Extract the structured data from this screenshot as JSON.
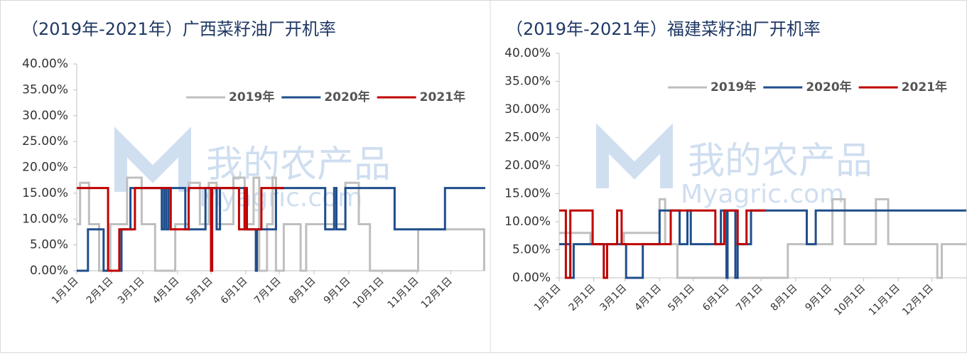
{
  "chart_data": [
    {
      "type": "line",
      "title": "（2019年-2021年）广西菜籽油厂开机率",
      "watermark": [
        "我的农产品",
        "Myagric.com"
      ],
      "xlim": [
        0,
        365
      ],
      "xticks": [
        {
          "value": 0,
          "label": "1月1日"
        },
        {
          "value": 31,
          "label": "2月1日"
        },
        {
          "value": 59,
          "label": "3月1日"
        },
        {
          "value": 90,
          "label": "4月1日"
        },
        {
          "value": 120,
          "label": "5月1日"
        },
        {
          "value": 151,
          "label": "6月1日"
        },
        {
          "value": 181,
          "label": "7月1日"
        },
        {
          "value": 212,
          "label": "8月1日"
        },
        {
          "value": 243,
          "label": "9月1日"
        },
        {
          "value": 273,
          "label": "10月1日"
        },
        {
          "value": 304,
          "label": "11月1日"
        },
        {
          "value": 334,
          "label": "12月1日"
        }
      ],
      "ylim": [
        0,
        40
      ],
      "yticks": [
        {
          "value": 0,
          "label": "0.00%"
        },
        {
          "value": 5,
          "label": "5.00%"
        },
        {
          "value": 10,
          "label": "10.00%"
        },
        {
          "value": 15,
          "label": "15.00%"
        },
        {
          "value": 20,
          "label": "20.00%"
        },
        {
          "value": 25,
          "label": "25.00%"
        },
        {
          "value": 30,
          "label": "30.00%"
        },
        {
          "value": 35,
          "label": "35.00%"
        },
        {
          "value": 40,
          "label": "40.00%"
        }
      ],
      "series": [
        {
          "name": "2019年",
          "color": "#bfbfbf",
          "x": [
            0,
            3,
            3,
            11,
            11,
            20,
            20,
            30,
            30,
            45,
            45,
            58,
            58,
            70,
            70,
            88,
            88,
            100,
            100,
            110,
            110,
            118,
            118,
            125,
            125,
            140,
            140,
            150,
            150,
            158,
            158,
            163,
            163,
            170,
            170,
            175,
            175,
            178,
            178,
            185,
            185,
            200,
            200,
            205,
            205,
            240,
            240,
            252,
            252,
            262,
            262,
            305,
            305,
            364,
            364
          ],
          "values": [
            9,
            9,
            17,
            17,
            9,
            9,
            0,
            0,
            9,
            9,
            18,
            18,
            9,
            9,
            0,
            0,
            9,
            9,
            17,
            17,
            9,
            9,
            17,
            17,
            9,
            9,
            18,
            18,
            9,
            9,
            18,
            18,
            0,
            0,
            9,
            9,
            18,
            18,
            0,
            0,
            9,
            9,
            0,
            0,
            9,
            9,
            17,
            17,
            9,
            9,
            0,
            0,
            8,
            8,
            0
          ]
        },
        {
          "name": "2020年",
          "color": "#1f4e8c",
          "x": [
            0,
            10,
            10,
            24,
            24,
            40,
            40,
            48,
            48,
            76,
            76,
            78,
            78,
            80,
            80,
            82,
            82,
            97,
            97,
            115,
            115,
            125,
            125,
            128,
            128,
            150,
            150,
            160,
            160,
            161,
            161,
            178,
            178,
            222,
            222,
            230,
            230,
            232,
            232,
            240,
            240,
            284,
            284,
            329,
            329,
            365
          ],
          "values": [
            0,
            0,
            8,
            8,
            0,
            0,
            8,
            8,
            16,
            16,
            8,
            8,
            16,
            16,
            8,
            8,
            16,
            16,
            8,
            8,
            16,
            16,
            8,
            8,
            16,
            16,
            8,
            8,
            0,
            0,
            8,
            8,
            16,
            16,
            8,
            8,
            16,
            16,
            8,
            8,
            16,
            16,
            8,
            8,
            16,
            16
          ]
        },
        {
          "name": "2021年",
          "color": "#c00000",
          "x": [
            0,
            28,
            28,
            38,
            38,
            52,
            52,
            84,
            84,
            100,
            100,
            120,
            120,
            121,
            121,
            145,
            145,
            150,
            150,
            152,
            152,
            165,
            165,
            185
          ],
          "values": [
            16,
            16,
            0,
            0,
            8,
            8,
            16,
            16,
            8,
            8,
            16,
            16,
            0,
            0,
            16,
            16,
            8,
            8,
            16,
            16,
            8,
            8,
            16,
            16
          ]
        }
      ]
    },
    {
      "type": "line",
      "title": "（2019年-2021年）福建菜籽油厂开机率",
      "watermark": [
        "我的农产品",
        "Myagric.com"
      ],
      "xlim": [
        0,
        365
      ],
      "xticks": [
        {
          "value": 0,
          "label": "1月1日"
        },
        {
          "value": 31,
          "label": "2月1日"
        },
        {
          "value": 59,
          "label": "3月1日"
        },
        {
          "value": 90,
          "label": "4月1日"
        },
        {
          "value": 120,
          "label": "5月1日"
        },
        {
          "value": 151,
          "label": "6月1日"
        },
        {
          "value": 181,
          "label": "7月1日"
        },
        {
          "value": 212,
          "label": "8月1日"
        },
        {
          "value": 243,
          "label": "9月1日"
        },
        {
          "value": 273,
          "label": "10月1日"
        },
        {
          "value": 304,
          "label": "11月1日"
        },
        {
          "value": 334,
          "label": "12月1日"
        }
      ],
      "ylim": [
        0,
        40
      ],
      "yticks": [
        {
          "value": 0,
          "label": "0.00%"
        },
        {
          "value": 5,
          "label": "5.00%"
        },
        {
          "value": 10,
          "label": "10.00%"
        },
        {
          "value": 15,
          "label": "15.00%"
        },
        {
          "value": 20,
          "label": "20.00%"
        },
        {
          "value": 25,
          "label": "25.00%"
        },
        {
          "value": 30,
          "label": "30.00%"
        },
        {
          "value": 35,
          "label": "35.00%"
        },
        {
          "value": 40,
          "label": "40.00%"
        }
      ],
      "series": [
        {
          "name": "2019年",
          "color": "#bfbfbf",
          "x": [
            0,
            28,
            28,
            58,
            58,
            90,
            90,
            95,
            95,
            106,
            106,
            205,
            205,
            245,
            245,
            256,
            256,
            284,
            284,
            295,
            295,
            339,
            339,
            343,
            343,
            365
          ],
          "values": [
            8,
            8,
            6,
            6,
            8,
            8,
            14,
            14,
            6,
            6,
            0,
            0,
            6,
            6,
            14,
            14,
            6,
            6,
            14,
            14,
            6,
            6,
            0,
            0,
            6,
            6
          ]
        },
        {
          "name": "2020年",
          "color": "#1f4e8c",
          "x": [
            0,
            10,
            10,
            13,
            13,
            60,
            60,
            75,
            75,
            90,
            90,
            108,
            108,
            115,
            115,
            118,
            118,
            145,
            145,
            150,
            150,
            151,
            151,
            158,
            158,
            160,
            160,
            172,
            172,
            222,
            222,
            230,
            230,
            365
          ],
          "values": [
            6,
            6,
            0,
            0,
            6,
            6,
            0,
            0,
            6,
            6,
            12,
            12,
            6,
            6,
            12,
            12,
            6,
            6,
            12,
            12,
            0,
            0,
            12,
            12,
            0,
            0,
            6,
            6,
            12,
            12,
            6,
            6,
            12,
            12
          ]
        },
        {
          "name": "2021年",
          "color": "#c00000",
          "x": [
            0,
            6,
            6,
            10,
            10,
            30,
            30,
            40,
            40,
            43,
            43,
            52,
            52,
            56,
            56,
            100,
            100,
            140,
            140,
            148,
            148,
            160,
            160,
            168,
            168,
            185
          ],
          "values": [
            12,
            12,
            0,
            0,
            12,
            12,
            6,
            6,
            0,
            0,
            6,
            6,
            12,
            12,
            6,
            6,
            12,
            12,
            6,
            6,
            12,
            12,
            6,
            6,
            12,
            12
          ]
        }
      ]
    }
  ]
}
